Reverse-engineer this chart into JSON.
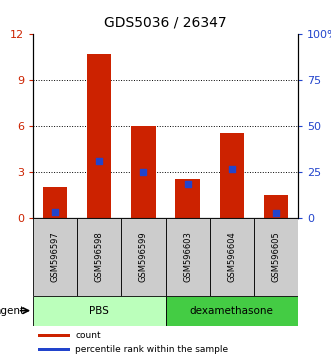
{
  "title": "GDS5036 / 26347",
  "categories": [
    "GSM596597",
    "GSM596598",
    "GSM596599",
    "GSM596603",
    "GSM596604",
    "GSM596605"
  ],
  "red_values": [
    2.0,
    10.7,
    6.0,
    2.5,
    5.5,
    1.5
  ],
  "blue_values": [
    0.4,
    3.7,
    3.0,
    2.2,
    3.2,
    0.3
  ],
  "ylim_left": [
    0,
    12
  ],
  "ylim_right": [
    0,
    100
  ],
  "yticks_left": [
    0,
    3,
    6,
    9,
    12
  ],
  "yticks_right": [
    0,
    25,
    50,
    75,
    100
  ],
  "ytick_labels_right": [
    "0",
    "25",
    "50",
    "75",
    "100%"
  ],
  "groups": [
    {
      "label": "PBS",
      "indices": [
        0,
        1,
        2
      ],
      "color": "#bbffbb"
    },
    {
      "label": "dexamethasone",
      "indices": [
        3,
        4,
        5
      ],
      "color": "#44cc44"
    }
  ],
  "agent_label": "agent",
  "bar_color": "#cc2200",
  "blue_color": "#2244cc",
  "bar_width": 0.55,
  "legend_items": [
    {
      "color": "#cc2200",
      "label": "count"
    },
    {
      "color": "#2244cc",
      "label": "percentile rank within the sample"
    }
  ],
  "left_tick_color": "#cc2200",
  "right_tick_color": "#2244cc",
  "gray_box_color": "#cccccc"
}
